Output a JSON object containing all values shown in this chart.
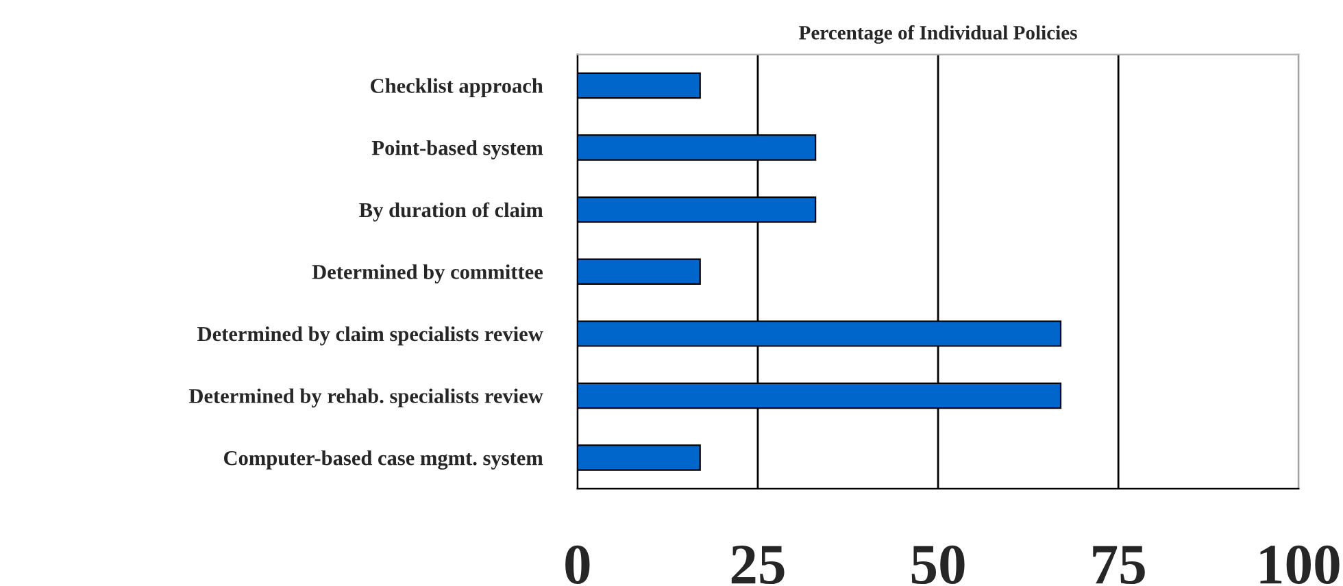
{
  "chart_data": {
    "type": "bar",
    "orientation": "horizontal",
    "title": "Percentage of Individual Policies",
    "categories": [
      "Checklist approach",
      "Point-based system",
      "By duration of claim",
      "Determined by committee",
      "Determined by claim specialists review",
      "Determined by rehab. specialists review",
      "Computer-based case mgmt. system"
    ],
    "values": [
      17,
      33,
      33,
      17,
      67,
      67,
      17
    ],
    "color": "#0066cc",
    "xlim": [
      0,
      100
    ],
    "xticks": [
      0,
      25,
      50,
      75,
      100
    ],
    "grid": "x"
  }
}
